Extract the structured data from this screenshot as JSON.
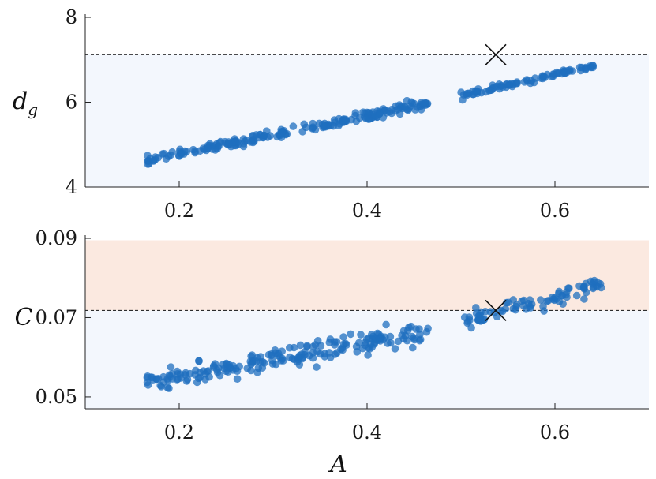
{
  "chart_data": [
    {
      "type": "scatter",
      "xlim": [
        0.1,
        0.7
      ],
      "ylim": [
        4,
        8
      ],
      "yticks": [
        4,
        6,
        8
      ],
      "ytick_labels": [
        "4",
        "6",
        "8"
      ],
      "xticks": [
        0.2,
        0.4,
        0.6
      ],
      "xtick_labels": [
        "0.2",
        "0.4",
        "0.6"
      ],
      "xlabel": "",
      "ylabel_main": "d",
      "ylabel_sub": "g",
      "threshold": 7.12,
      "marker": {
        "x": 0.537,
        "y": 7.12
      },
      "shaded_bands": [
        {
          "from": 4,
          "to": 7.12,
          "color": "#f3f7fd"
        }
      ],
      "series": [
        {
          "color": "#1f6fbf",
          "clusters": [
            {
              "x0": 0.165,
              "x1": 0.465,
              "y0": 4.62,
              "y1": 5.98,
              "spread": 0.09,
              "n": 210
            },
            {
              "x0": 0.5,
              "x1": 0.65,
              "y0": 6.15,
              "y1": 6.9,
              "spread": 0.05,
              "n": 85
            }
          ]
        }
      ]
    },
    {
      "type": "scatter",
      "xlim": [
        0.1,
        0.7
      ],
      "ylim": [
        0.047,
        0.09
      ],
      "yticks": [
        0.05,
        0.07,
        0.09
      ],
      "ytick_labels": [
        "0.05",
        "0.07",
        "0.09"
      ],
      "xticks": [
        0.2,
        0.4,
        0.6
      ],
      "xtick_labels": [
        "0.2",
        "0.4",
        "0.6"
      ],
      "xlabel": "A",
      "ylabel_main": "C",
      "ylabel_sub": "",
      "threshold": 0.0718,
      "marker": {
        "x": 0.537,
        "y": 0.0718
      },
      "shaded_bands": [
        {
          "from": 0.047,
          "to": 0.0718,
          "color": "#f3f7fd"
        },
        {
          "from": 0.0718,
          "to": 0.0895,
          "color": "#fbe9e0"
        }
      ],
      "series": [
        {
          "color": "#1f6fbf",
          "clusters": [
            {
              "x0": 0.165,
              "x1": 0.465,
              "y0": 0.0535,
              "y1": 0.0665,
              "spread": 0.0022,
              "n": 210
            },
            {
              "x0": 0.5,
              "x1": 0.65,
              "y0": 0.0685,
              "y1": 0.0785,
              "spread": 0.0016,
              "n": 85
            }
          ]
        }
      ]
    }
  ]
}
